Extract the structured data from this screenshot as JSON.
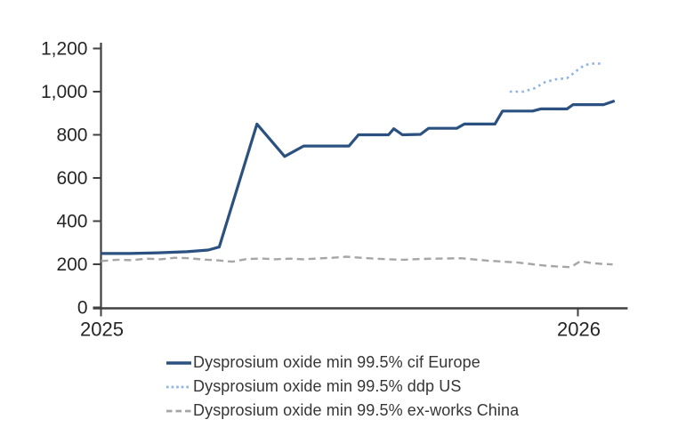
{
  "chart_data": {
    "type": "line",
    "title": "",
    "x_axis": {
      "tick_labels": [
        "2025",
        "2026"
      ],
      "tick_positions": [
        0,
        1
      ],
      "range": [
        0,
        1.095
      ],
      "grid": false
    },
    "y_axis": {
      "range": [
        0,
        1200
      ],
      "ticks": [
        {
          "v": 0,
          "label": "0"
        },
        {
          "v": 200,
          "label": "200"
        },
        {
          "v": 400,
          "label": "400"
        },
        {
          "v": 600,
          "label": "600"
        },
        {
          "v": 800,
          "label": "800"
        },
        {
          "v": 1000,
          "label": "1,000"
        },
        {
          "v": 1200,
          "label": "1,200"
        }
      ],
      "grid": false
    },
    "legend_position": "bottom-left-stacked",
    "series": [
      {
        "id": "cif-europe",
        "name": "Dysprosium oxide min 99.5% cif Europe",
        "color": "#2B5180",
        "style": "solid",
        "points": [
          [
            0.0,
            250
          ],
          [
            0.06,
            250
          ],
          [
            0.12,
            253
          ],
          [
            0.18,
            258
          ],
          [
            0.225,
            266
          ],
          [
            0.248,
            280
          ],
          [
            0.327,
            850
          ],
          [
            0.385,
            700
          ],
          [
            0.425,
            748
          ],
          [
            0.52,
            748
          ],
          [
            0.54,
            800
          ],
          [
            0.603,
            800
          ],
          [
            0.614,
            828
          ],
          [
            0.632,
            800
          ],
          [
            0.67,
            802
          ],
          [
            0.687,
            830
          ],
          [
            0.746,
            830
          ],
          [
            0.762,
            850
          ],
          [
            0.826,
            850
          ],
          [
            0.842,
            910
          ],
          [
            0.905,
            910
          ],
          [
            0.922,
            920
          ],
          [
            0.977,
            920
          ],
          [
            0.99,
            940
          ],
          [
            1.054,
            940
          ],
          [
            1.077,
            957
          ]
        ]
      },
      {
        "id": "ddp-us",
        "name": "Dysprosium oxide min 99.5% ddp US",
        "color": "#8DB4E2",
        "style": "dotted",
        "points": [
          [
            0.857,
            1000
          ],
          [
            0.885,
            1000
          ],
          [
            0.908,
            1015
          ],
          [
            0.932,
            1045
          ],
          [
            0.956,
            1058
          ],
          [
            0.977,
            1062
          ],
          [
            0.996,
            1095
          ],
          [
            1.013,
            1122
          ],
          [
            1.028,
            1130
          ],
          [
            1.051,
            1130
          ]
        ]
      },
      {
        "id": "ex-works-china",
        "name": "Dysprosium oxide min 99.5% ex-works China",
        "color": "#A6A6A6",
        "style": "dashed",
        "points": [
          [
            0.0,
            215
          ],
          [
            0.035,
            221
          ],
          [
            0.065,
            219
          ],
          [
            0.095,
            226
          ],
          [
            0.125,
            223
          ],
          [
            0.155,
            230
          ],
          [
            0.185,
            228
          ],
          [
            0.215,
            222
          ],
          [
            0.245,
            218
          ],
          [
            0.275,
            212
          ],
          [
            0.305,
            224
          ],
          [
            0.335,
            227
          ],
          [
            0.365,
            223
          ],
          [
            0.395,
            226
          ],
          [
            0.425,
            223
          ],
          [
            0.455,
            227
          ],
          [
            0.485,
            230
          ],
          [
            0.515,
            235
          ],
          [
            0.545,
            230
          ],
          [
            0.575,
            226
          ],
          [
            0.605,
            223
          ],
          [
            0.635,
            221
          ],
          [
            0.665,
            224
          ],
          [
            0.695,
            226
          ],
          [
            0.725,
            227
          ],
          [
            0.755,
            228
          ],
          [
            0.785,
            222
          ],
          [
            0.815,
            216
          ],
          [
            0.845,
            212
          ],
          [
            0.875,
            208
          ],
          [
            0.905,
            200
          ],
          [
            0.935,
            193
          ],
          [
            0.962,
            189
          ],
          [
            0.985,
            187
          ],
          [
            1.005,
            214
          ],
          [
            1.025,
            207
          ],
          [
            1.048,
            202
          ],
          [
            1.073,
            199
          ]
        ]
      }
    ]
  },
  "styles": {
    "axis_color": "#404040",
    "tick_label_color": "#262626",
    "legend_text_color": "#363636",
    "background": "#ffffff"
  }
}
